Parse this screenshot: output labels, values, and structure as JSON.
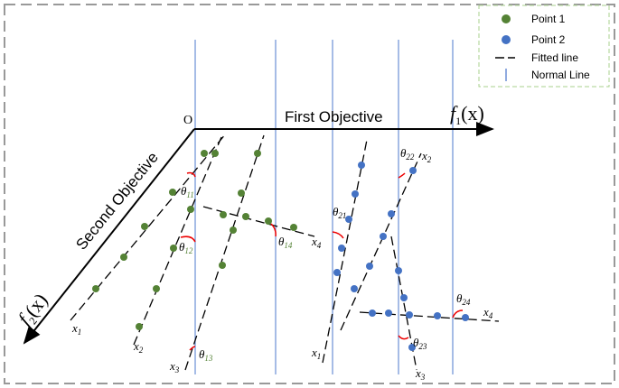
{
  "legend": [
    "Point 1",
    "Point 2",
    "Fitted line",
    "Normal Line"
  ],
  "origin": "O",
  "x_axis": {
    "title": "First Objective",
    "symbol": "f",
    "subscript": "1",
    "argument": "(x)"
  },
  "y_axis": {
    "title": "Second Objective",
    "symbol": "f",
    "subscript": "2",
    "argument": "(x)"
  },
  "line_labels": [
    {
      "symbol": "x",
      "subscript": "1"
    },
    {
      "symbol": "x",
      "subscript": "2"
    },
    {
      "symbol": "x",
      "subscript": "3"
    },
    {
      "symbol": "x",
      "subscript": "4"
    },
    {
      "symbol": "x",
      "subscript": "1"
    },
    {
      "symbol": "x",
      "subscript": "2"
    },
    {
      "symbol": "x",
      "subscript": "3"
    },
    {
      "symbol": "x",
      "subscript": "4"
    }
  ],
  "angles": [
    {
      "symbol": "θ",
      "subscript": "11"
    },
    {
      "symbol": "θ",
      "subscript": "12"
    },
    {
      "symbol": "θ",
      "subscript": "13"
    },
    {
      "symbol": "θ",
      "subscript": "14"
    },
    {
      "symbol": "θ",
      "subscript": "21"
    },
    {
      "symbol": "θ",
      "subscript": "22"
    },
    {
      "symbol": "θ",
      "subscript": "23"
    },
    {
      "symbol": "θ",
      "subscript": "24"
    }
  ]
}
